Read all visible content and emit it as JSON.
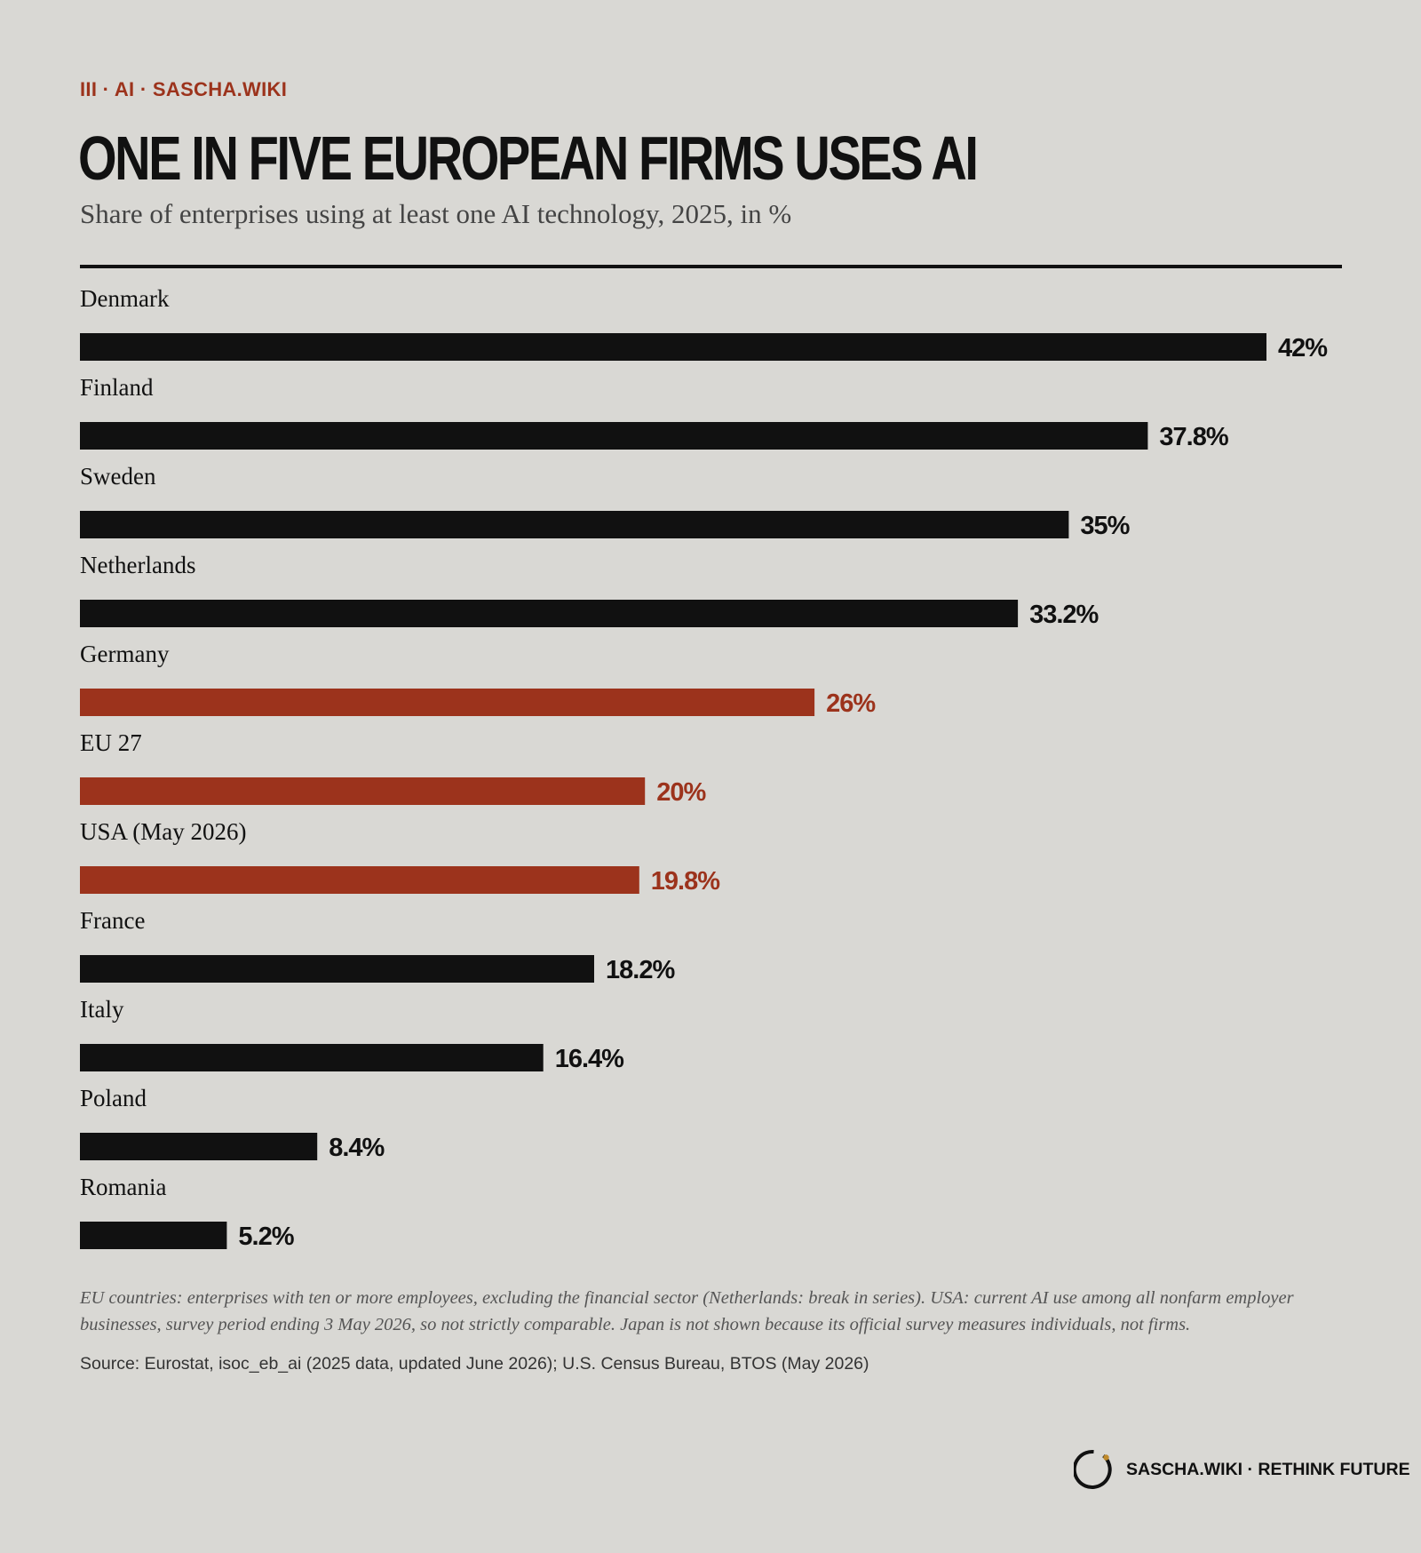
{
  "header": {
    "kicker": "III · AI · SASCHA.WIKI",
    "title": "ONE IN FIVE EUROPEAN FIRMS USES AI",
    "subtitle": "Share of enterprises using at least one AI technology, 2025, in %"
  },
  "chart_data": {
    "type": "bar",
    "orientation": "horizontal",
    "title": "ONE IN FIVE EUROPEAN FIRMS USES AI",
    "subtitle": "Share of enterprises using at least one AI technology, 2025, in %",
    "xlabel": "",
    "ylabel": "",
    "xlim": [
      0,
      47.5
    ],
    "grid": false,
    "legend": "none",
    "categories": [
      "Denmark",
      "Finland",
      "Sweden",
      "Netherlands",
      "Germany",
      "EU 27",
      "USA (May 2026)",
      "France",
      "Italy",
      "Poland",
      "Romania"
    ],
    "values": [
      42,
      37.8,
      35,
      33.2,
      26,
      20,
      19.8,
      18.2,
      16.4,
      8.4,
      5.2
    ],
    "value_labels": [
      "42%",
      "37.8%",
      "35%",
      "33.2%",
      "26%",
      "20%",
      "19.8%",
      "18.2%",
      "16.4%",
      "8.4%",
      "5.2%"
    ],
    "highlighted": [
      false,
      false,
      false,
      false,
      true,
      true,
      true,
      false,
      false,
      false,
      false
    ],
    "colors": {
      "default": "#111111",
      "highlight": "#9c331c"
    }
  },
  "footnote": "EU countries: enterprises with ten or more employees, excluding the financial sector (Netherlands: break in series). USA: current AI use among all nonfarm employer businesses, survey period ending 3 May 2026, so not strictly comparable. Japan is not shown because its official survey measures individuals, not firms.",
  "source": "Source: Eurostat, isoc_eb_ai (2025 data, updated June 2026); U.S. Census Bureau, BTOS (May 2026)",
  "brand": {
    "text": "SASCHA.WIKI · RETHINK FUTURE",
    "logo_icon": "ring-logo-icon",
    "logo_colors": {
      "ring": "#111111",
      "dot": "#c08a2a"
    }
  },
  "colors": {
    "background": "#d9d8d4",
    "accent": "#9c331c",
    "text": "#111111"
  }
}
